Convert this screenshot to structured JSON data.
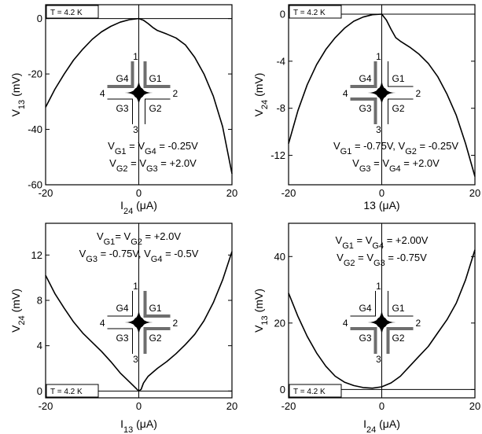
{
  "chart_data": [
    {
      "type": "line",
      "temperature_label": "T = 4.2 K",
      "xlim": [
        -20,
        20
      ],
      "ylim": [
        -60,
        5
      ],
      "xticks": [
        -20,
        0,
        20
      ],
      "yticks": [
        0,
        -20,
        -40,
        -60
      ],
      "xlabel": {
        "main": "I",
        "sub": "24",
        "unit": " (μA)"
      },
      "ylabel": {
        "main": "V",
        "sub": "13",
        "unit": " (mV)"
      },
      "gate_conditions": [
        {
          "text": "V",
          "parts": [
            [
              "V",
              "G1"
            ],
            [
              " = V",
              "G4"
            ],
            [
              " = -0.25V",
              ""
            ]
          ]
        },
        {
          "text": "V",
          "parts": [
            [
              "V",
              "G2"
            ],
            [
              " = V",
              "G3"
            ],
            [
              " = +2.0V",
              ""
            ]
          ]
        }
      ],
      "series": [
        {
          "values": [
            [
              -20,
              -32
            ],
            [
              -18,
              -25.5
            ],
            [
              -16,
              -20
            ],
            [
              -14,
              -15
            ],
            [
              -12,
              -11
            ],
            [
              -10,
              -7.5
            ],
            [
              -8,
              -4.8
            ],
            [
              -6,
              -2.8
            ],
            [
              -4,
              -1.3
            ],
            [
              -2,
              -0.4
            ],
            [
              0,
              0
            ],
            [
              1,
              -0.6
            ],
            [
              2,
              -1.8
            ],
            [
              3,
              -3.2
            ],
            [
              4,
              -4.3
            ],
            [
              6,
              -5.6
            ],
            [
              8,
              -7
            ],
            [
              10,
              -9.5
            ],
            [
              12,
              -14
            ],
            [
              14,
              -20
            ],
            [
              16,
              -28
            ],
            [
              18,
              -39
            ],
            [
              20,
              -56
            ]
          ]
        }
      ]
    },
    {
      "type": "line",
      "temperature_label": "T = 4.2 K",
      "xlim": [
        -20,
        20
      ],
      "ylim": [
        -14.5,
        0.8
      ],
      "xticks": [
        -20,
        0,
        20
      ],
      "yticks": [
        0,
        -4,
        -8,
        -12
      ],
      "xlabel": {
        "main": "13",
        "sub": "",
        "unit": " (μA)"
      },
      "ylabel": {
        "main": "V",
        "sub": "24",
        "unit": " (mV)"
      },
      "gate_conditions": [
        {
          "text": "V",
          "parts": [
            [
              "V",
              "G1"
            ],
            [
              " = -0.75V, V",
              "G2"
            ],
            [
              " = -0.25V",
              ""
            ]
          ]
        },
        {
          "text": "V",
          "parts": [
            [
              "V",
              "G3"
            ],
            [
              " = V",
              "G4"
            ],
            [
              " = +2.0V",
              ""
            ]
          ]
        }
      ],
      "series": [
        {
          "values": [
            [
              -20,
              -11
            ],
            [
              -18,
              -8.2
            ],
            [
              -16,
              -6
            ],
            [
              -14,
              -4.3
            ],
            [
              -12,
              -3
            ],
            [
              -10,
              -2
            ],
            [
              -8,
              -1.2
            ],
            [
              -6,
              -0.6
            ],
            [
              -4,
              -0.25
            ],
            [
              -2,
              -0.05
            ],
            [
              0,
              0
            ],
            [
              1,
              -0.5
            ],
            [
              2,
              -1.3
            ],
            [
              3,
              -2
            ],
            [
              4,
              -2.3
            ],
            [
              6,
              -2.8
            ],
            [
              8,
              -3.4
            ],
            [
              10,
              -4.2
            ],
            [
              12,
              -5.3
            ],
            [
              14,
              -6.8
            ],
            [
              16,
              -8.6
            ],
            [
              18,
              -11
            ],
            [
              20,
              -13.8
            ]
          ]
        }
      ]
    },
    {
      "type": "line",
      "temperature_label": "T = 4.2 K",
      "xlim": [
        -20,
        20
      ],
      "ylim": [
        -0.6,
        14.8
      ],
      "xticks": [
        -20,
        0,
        20
      ],
      "yticks": [
        0,
        4,
        8,
        12
      ],
      "xlabel": {
        "main": "I",
        "sub": "13",
        "unit": " (μA)"
      },
      "ylabel": {
        "main": "V",
        "sub": "24",
        "unit": " (mV)"
      },
      "gate_conditions": [
        {
          "text": "V",
          "parts": [
            [
              "V",
              "G1"
            ],
            [
              "= V",
              "G2"
            ],
            [
              " = +2.0V",
              ""
            ]
          ]
        },
        {
          "text": "V",
          "parts": [
            [
              "V",
              "G3"
            ],
            [
              " = -0.75V, V",
              "G4"
            ],
            [
              " = -0.5V",
              ""
            ]
          ]
        }
      ],
      "series": [
        {
          "values": [
            [
              -20,
              10.2
            ],
            [
              -18,
              8.6
            ],
            [
              -16,
              7.3
            ],
            [
              -14,
              6.1
            ],
            [
              -12,
              5.1
            ],
            [
              -10,
              4.3
            ],
            [
              -8,
              3.5
            ],
            [
              -6,
              2.6
            ],
            [
              -4,
              1.6
            ],
            [
              -2,
              0.8
            ],
            [
              -1,
              0.4
            ],
            [
              0,
              0
            ],
            [
              0.5,
              0.15
            ],
            [
              1,
              0.7
            ],
            [
              2,
              1.3
            ],
            [
              4,
              2
            ],
            [
              6,
              2.6
            ],
            [
              8,
              3.3
            ],
            [
              10,
              4.1
            ],
            [
              12,
              5
            ],
            [
              14,
              6.2
            ],
            [
              16,
              7.8
            ],
            [
              18,
              9.8
            ],
            [
              20,
              12.3
            ]
          ]
        }
      ]
    },
    {
      "type": "line",
      "temperature_label": "T = 4.2 K",
      "xlim": [
        -20,
        20
      ],
      "ylim": [
        -2.5,
        50
      ],
      "xticks": [
        -20,
        0,
        20
      ],
      "yticks": [
        0,
        20,
        40
      ],
      "xlabel": {
        "main": "I",
        "sub": "24",
        "unit": " (μA)"
      },
      "ylabel": {
        "main": "V",
        "sub": "13",
        "unit": " (mV)"
      },
      "gate_conditions": [
        {
          "text": "V",
          "parts": [
            [
              "V",
              "G1"
            ],
            [
              " = V",
              "G4"
            ],
            [
              " = +2.00V",
              ""
            ]
          ]
        },
        {
          "text": "V",
          "parts": [
            [
              "V",
              "G2"
            ],
            [
              " = V",
              "G3"
            ],
            [
              " = -0.75V",
              ""
            ]
          ]
        }
      ],
      "series": [
        {
          "values": [
            [
              -20,
              29
            ],
            [
              -18,
              22
            ],
            [
              -16,
              16
            ],
            [
              -14,
              11
            ],
            [
              -12,
              7
            ],
            [
              -10,
              4
            ],
            [
              -8,
              2.2
            ],
            [
              -6,
              1.2
            ],
            [
              -4,
              0.6
            ],
            [
              -2,
              0.4
            ],
            [
              0,
              0.8
            ],
            [
              2,
              2
            ],
            [
              4,
              4
            ],
            [
              6,
              7
            ],
            [
              8,
              10
            ],
            [
              10,
              13
            ],
            [
              12,
              17
            ],
            [
              14,
              21
            ],
            [
              16,
              26
            ],
            [
              18,
              33
            ],
            [
              20,
              42
            ]
          ]
        }
      ]
    }
  ],
  "inset": {
    "labels": {
      "lead_top": "1",
      "lead_right": "2",
      "lead_bottom": "3",
      "lead_left": "4",
      "g1": "G1",
      "g2": "G2",
      "g3": "G3",
      "g4": "G4"
    },
    "colors": {
      "active_gate": "#6e6e6e",
      "inactive_gate": "#000000",
      "center": "#000000"
    },
    "active": [
      [
        "g1",
        "g4"
      ],
      [
        "g3",
        "g4"
      ],
      [
        "g1",
        "g2"
      ],
      [
        "g2",
        "g3"
      ]
    ]
  },
  "colors": {
    "axis": "#000000",
    "curve": "#000000",
    "background": "#ffffff"
  }
}
